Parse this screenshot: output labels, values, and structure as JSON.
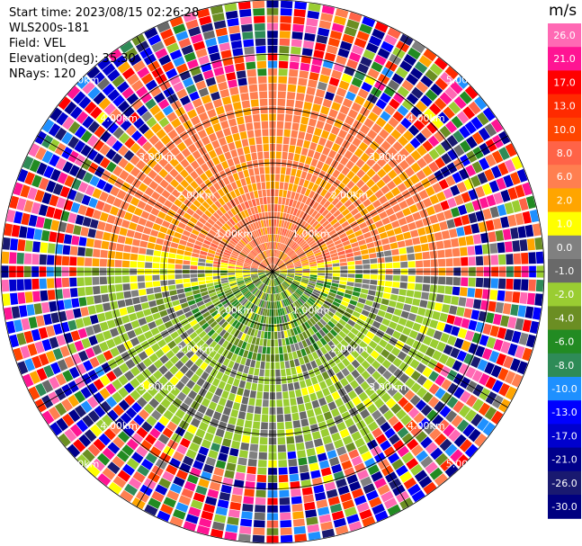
{
  "header": {
    "start_time": "Start time: 2023/08/15 02:26:28",
    "instrument": "WLS200s-181",
    "field": "Field: VEL",
    "elevation": "Elevation(deg): 35.30",
    "nrays": "NRays: 120"
  },
  "colorbar": {
    "unit": "m/s",
    "ticks": [
      "26.0",
      "21.0",
      "17.0",
      "13.0",
      "10.0",
      "8.0",
      "6.0",
      "2.0",
      "1.0",
      "0.0",
      "-1.0",
      "-2.0",
      "-4.0",
      "-6.0",
      "-8.0",
      "-10.0",
      "-13.0",
      "-17.0",
      "-21.0",
      "-26.0",
      "-30.0"
    ],
    "colors": [
      "#ff69b4",
      "#ff1493",
      "#ff0000",
      "#ff2a00",
      "#ff4500",
      "#ff6347",
      "#ff7f50",
      "#ffa500",
      "#ffff00",
      "#808080",
      "#696969",
      "#9acd32",
      "#6b8e23",
      "#228b22",
      "#2e8b57",
      "#1e90ff",
      "#0000ff",
      "#0000cd",
      "#00008b",
      "#191970",
      "#000080"
    ]
  },
  "chart_data": {
    "type": "heatmap",
    "projection": "polar-ppi",
    "field": "VEL",
    "unit": "m/s",
    "nrays": 120,
    "elevation_deg": 35.3,
    "range_rings_km": [
      1.0,
      2.0,
      3.0,
      4.0,
      5.0
    ],
    "ring_labels": [
      "1.00km",
      "2.00km",
      "3.00km",
      "4.00km",
      "5.00km"
    ],
    "max_range_km": 5.0,
    "value_range": [
      -30.0,
      26.0
    ],
    "regions": [
      {
        "sector": "north",
        "max_range_km": 3.2,
        "value": 2.0
      },
      {
        "sector": "north-center",
        "max_range_km": 1.5,
        "value": 6.0
      },
      {
        "sector": "south",
        "max_range_km": 3.0,
        "value": -3.0
      },
      {
        "sector": "south-center",
        "max_range_km": 1.5,
        "value": -6.0
      },
      {
        "sector": "east-west",
        "max_range_km": 2.5,
        "value": 0.0
      },
      {
        "sector": "all",
        "min_range_km": 3.5,
        "value": "noise"
      }
    ]
  }
}
